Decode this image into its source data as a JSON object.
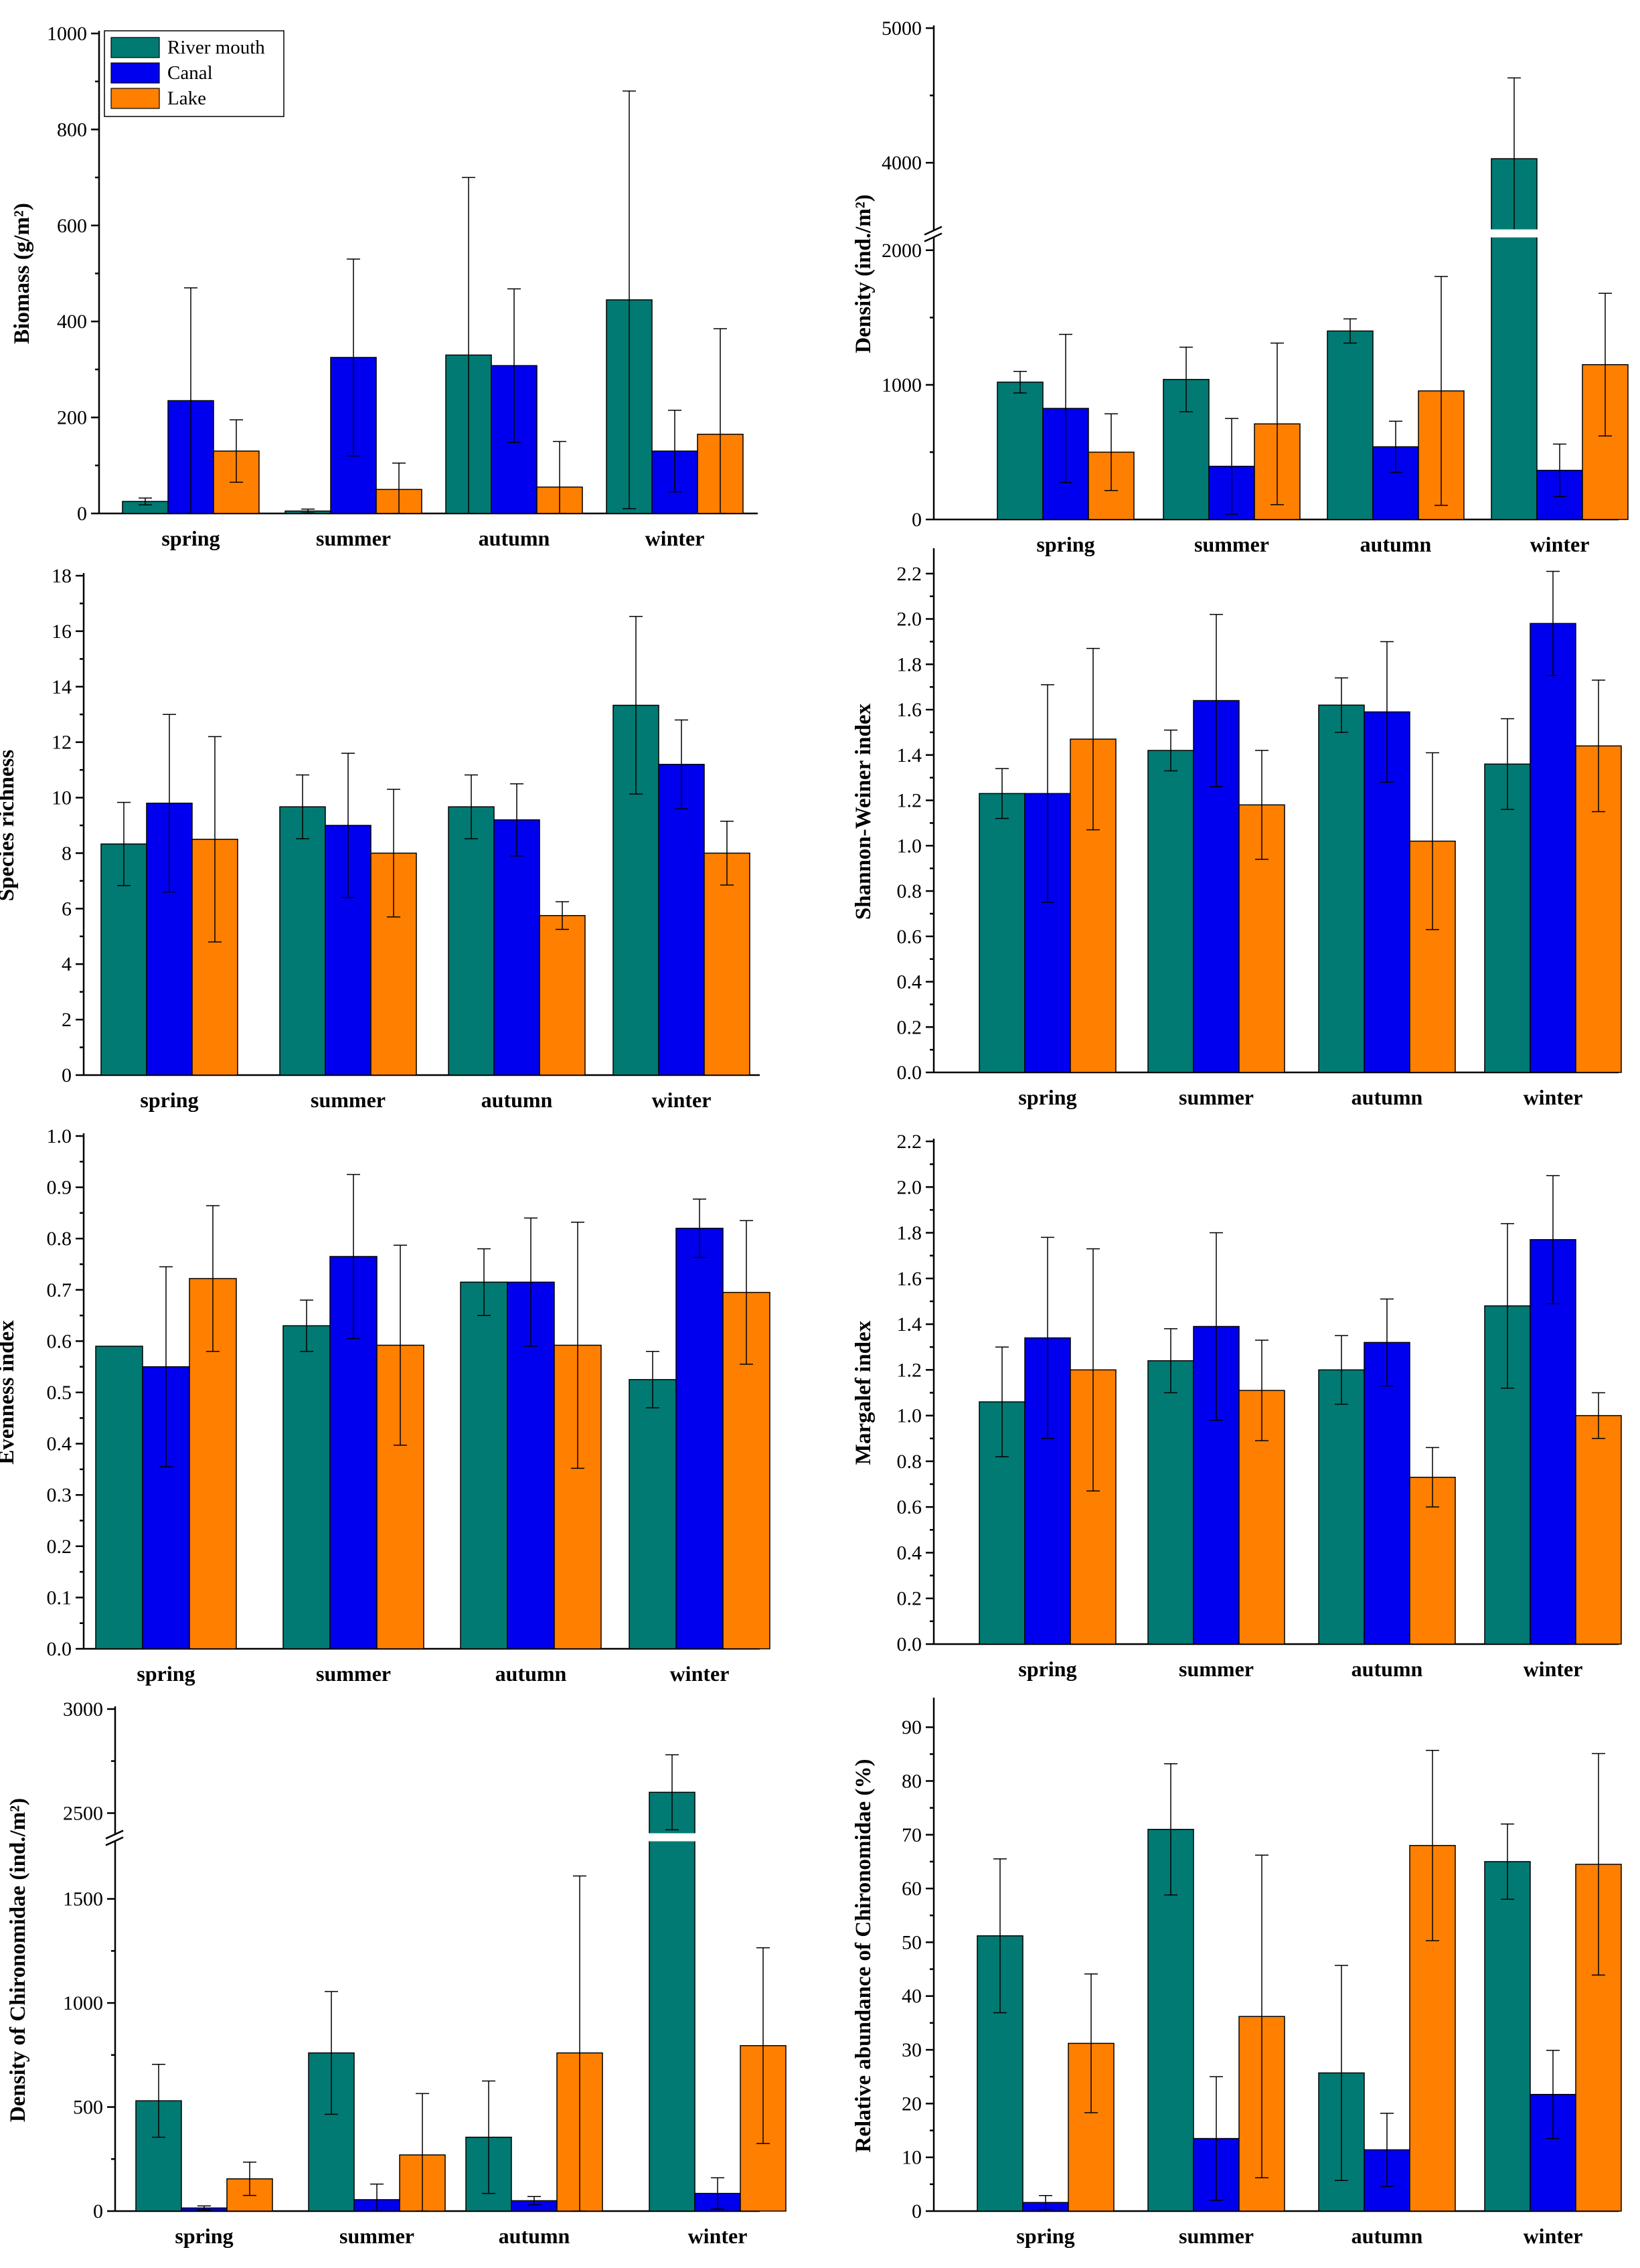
{
  "figure": {
    "colors": {
      "River mouth": "#007a73",
      "Canal": "#0000ee",
      "Lake": "#ff7f00"
    },
    "legend": [
      "River mouth",
      "Canal",
      "Lake"
    ]
  },
  "chart_data": [
    {
      "id": "biomass",
      "type": "bar",
      "categories": [
        "spring",
        "summer",
        "autumn",
        "winter"
      ],
      "ylabel": "Biomass (g/m²)",
      "ylim": [
        0,
        1000
      ],
      "yticks": [
        0,
        200,
        400,
        600,
        800,
        1000
      ],
      "ytick_labels": [
        "0",
        "200",
        "400",
        "600",
        "800",
        "1000"
      ],
      "legend": "top-left",
      "series": [
        {
          "name": "River mouth",
          "values": [
            25,
            5,
            330,
            445
          ],
          "errors": [
            7,
            4,
            370,
            435
          ]
        },
        {
          "name": "Canal",
          "values": [
            235,
            325,
            308,
            130
          ],
          "errors": [
            235,
            205,
            160,
            85
          ]
        },
        {
          "name": "Lake",
          "values": [
            130,
            50,
            55,
            165
          ],
          "errors": [
            65,
            55,
            95,
            220
          ]
        }
      ]
    },
    {
      "id": "density",
      "type": "bar",
      "categories": [
        "spring",
        "summer",
        "autumn",
        "winter"
      ],
      "ylabel": "Density (ind./m²)",
      "ylim": [
        0,
        5000
      ],
      "axis_break": [
        2100,
        3500
      ],
      "yticks": [
        0,
        1000,
        2000,
        4000,
        5000
      ],
      "ytick_labels": [
        "0",
        "1000",
        "2000",
        "4000",
        "5000"
      ],
      "series": [
        {
          "name": "River mouth",
          "values": [
            1020,
            1040,
            1400,
            4030
          ],
          "errors": [
            80,
            240,
            90,
            600
          ]
        },
        {
          "name": "Canal",
          "values": [
            825,
            395,
            540,
            365
          ],
          "errors": [
            550,
            355,
            190,
            195
          ]
        },
        {
          "name": "Lake",
          "values": [
            500,
            710,
            955,
            1150
          ],
          "errors": [
            285,
            600,
            850,
            530
          ]
        }
      ]
    },
    {
      "id": "richness",
      "type": "bar",
      "categories": [
        "spring",
        "summer",
        "autumn",
        "winter"
      ],
      "ylabel": "Species richness",
      "ylim": [
        0,
        18
      ],
      "yticks": [
        0,
        2,
        4,
        6,
        8,
        10,
        12,
        14,
        16,
        18
      ],
      "ytick_labels": [
        "0",
        "2",
        "4",
        "6",
        "8",
        "10",
        "12",
        "14",
        "16",
        "18"
      ],
      "series": [
        {
          "name": "River mouth",
          "values": [
            8.33,
            9.67,
            9.67,
            13.33
          ],
          "errors": [
            1.5,
            1.15,
            1.15,
            3.2
          ]
        },
        {
          "name": "Canal",
          "values": [
            9.8,
            9.0,
            9.2,
            11.2
          ],
          "errors": [
            3.2,
            2.6,
            1.3,
            1.6
          ]
        },
        {
          "name": "Lake",
          "values": [
            8.5,
            8.0,
            5.75,
            8.0
          ],
          "errors": [
            3.7,
            2.3,
            0.5,
            1.15
          ]
        }
      ]
    },
    {
      "id": "shannon",
      "type": "bar",
      "categories": [
        "spring",
        "summer",
        "autumn",
        "winter"
      ],
      "ylabel": "Shannon-Weiner index",
      "ylim": [
        0,
        2.3
      ],
      "yticks": [
        0,
        0.2,
        0.4,
        0.6,
        0.8,
        1.0,
        1.2,
        1.4,
        1.6,
        1.8,
        2.0,
        2.2
      ],
      "ytick_labels": [
        "0.0",
        "0.2",
        "0.4",
        "0.6",
        "0.8",
        "1.0",
        "1.2",
        "1.4",
        "1.6",
        "1.8",
        "2.0",
        "2.2"
      ],
      "series": [
        {
          "name": "River mouth",
          "values": [
            1.23,
            1.42,
            1.62,
            1.36
          ],
          "errors": [
            0.11,
            0.09,
            0.12,
            0.2
          ]
        },
        {
          "name": "Canal",
          "values": [
            1.23,
            1.64,
            1.59,
            1.98
          ],
          "errors": [
            0.48,
            0.38,
            0.31,
            0.23
          ]
        },
        {
          "name": "Lake",
          "values": [
            1.47,
            1.18,
            1.02,
            1.44
          ],
          "errors": [
            0.4,
            0.24,
            0.39,
            0.29
          ]
        }
      ]
    },
    {
      "id": "evenness",
      "type": "bar",
      "categories": [
        "spring",
        "summer",
        "autumn",
        "winter"
      ],
      "ylabel": "Evenness index",
      "ylim": [
        0,
        1.0
      ],
      "yticks": [
        0,
        0.1,
        0.2,
        0.3,
        0.4,
        0.5,
        0.6,
        0.7,
        0.8,
        0.9,
        1.0
      ],
      "ytick_labels": [
        "0.0",
        "0.1",
        "0.2",
        "0.3",
        "0.4",
        "0.5",
        "0.6",
        "0.7",
        "0.8",
        "0.9",
        "1.0"
      ],
      "series": [
        {
          "name": "River mouth",
          "values": [
            0.59,
            0.63,
            0.715,
            0.525
          ],
          "errors": [
            0,
            0.05,
            0.065,
            0.055
          ]
        },
        {
          "name": "Canal",
          "values": [
            0.55,
            0.765,
            0.715,
            0.82
          ],
          "errors": [
            0.195,
            0.16,
            0.125,
            0.057
          ]
        },
        {
          "name": "Lake",
          "values": [
            0.722,
            0.592,
            0.592,
            0.695
          ],
          "errors": [
            0.142,
            0.195,
            0.24,
            0.14
          ]
        }
      ]
    },
    {
      "id": "margalef",
      "type": "bar",
      "categories": [
        "spring",
        "summer",
        "autumn",
        "winter"
      ],
      "ylabel": "Margalef index",
      "ylim": [
        0,
        2.2
      ],
      "yticks": [
        0,
        0.2,
        0.4,
        0.6,
        0.8,
        1.0,
        1.2,
        1.4,
        1.6,
        1.8,
        2.0,
        2.2
      ],
      "ytick_labels": [
        "0.0",
        "0.2",
        "0.4",
        "0.6",
        "0.8",
        "1.0",
        "1.2",
        "1.4",
        "1.6",
        "1.8",
        "2.0",
        "2.2"
      ],
      "series": [
        {
          "name": "River mouth",
          "values": [
            1.06,
            1.24,
            1.2,
            1.48
          ],
          "errors": [
            0.24,
            0.14,
            0.15,
            0.36
          ]
        },
        {
          "name": "Canal",
          "values": [
            1.34,
            1.39,
            1.32,
            1.77
          ],
          "errors": [
            0.44,
            0.41,
            0.19,
            0.28
          ]
        },
        {
          "name": "Lake",
          "values": [
            1.2,
            1.11,
            0.73,
            1.0
          ],
          "errors": [
            0.53,
            0.22,
            0.13,
            0.1
          ]
        }
      ]
    },
    {
      "id": "chiro-density",
      "type": "bar",
      "categories": [
        "spring",
        "summer",
        "autumn",
        "winter"
      ],
      "ylabel": "Density of Chironomidae (ind./m²)",
      "ylim": [
        0,
        3000
      ],
      "axis_break": [
        1780,
        2400
      ],
      "yticks": [
        0,
        500,
        1000,
        1500,
        2500,
        3000
      ],
      "ytick_labels": [
        "0",
        "500",
        "1000",
        "1500",
        "2500",
        "3000"
      ],
      "series": [
        {
          "name": "River mouth",
          "values": [
            530,
            760,
            355,
            2600
          ],
          "errors": [
            175,
            295,
            270,
            180
          ]
        },
        {
          "name": "Canal",
          "values": [
            15,
            55,
            50,
            85
          ],
          "errors": [
            10,
            75,
            20,
            75
          ]
        },
        {
          "name": "Lake",
          "values": [
            155,
            270,
            760,
            795
          ],
          "errors": [
            80,
            295,
            850,
            470
          ]
        }
      ]
    },
    {
      "id": "chiro-abundance",
      "type": "bar",
      "categories": [
        "spring",
        "summer",
        "autumn",
        "winter"
      ],
      "ylabel": "Relative abundance of Chironomidae (%)",
      "ylim": [
        0,
        95
      ],
      "yticks": [
        0,
        10,
        20,
        30,
        40,
        50,
        60,
        70,
        80,
        90
      ],
      "ytick_labels": [
        "0",
        "10",
        "20",
        "30",
        "40",
        "50",
        "60",
        "70",
        "80",
        "90"
      ],
      "series": [
        {
          "name": "River mouth",
          "values": [
            51.2,
            71.0,
            25.7,
            65.0
          ],
          "errors": [
            14.3,
            12.2,
            20.0,
            7.0
          ]
        },
        {
          "name": "Canal",
          "values": [
            1.6,
            13.5,
            11.4,
            21.7
          ],
          "errors": [
            1.3,
            11.5,
            6.8,
            8.2
          ]
        },
        {
          "name": "Lake",
          "values": [
            31.2,
            36.2,
            68.0,
            64.5
          ],
          "errors": [
            12.9,
            30.0,
            17.7,
            20.6
          ]
        }
      ]
    }
  ]
}
